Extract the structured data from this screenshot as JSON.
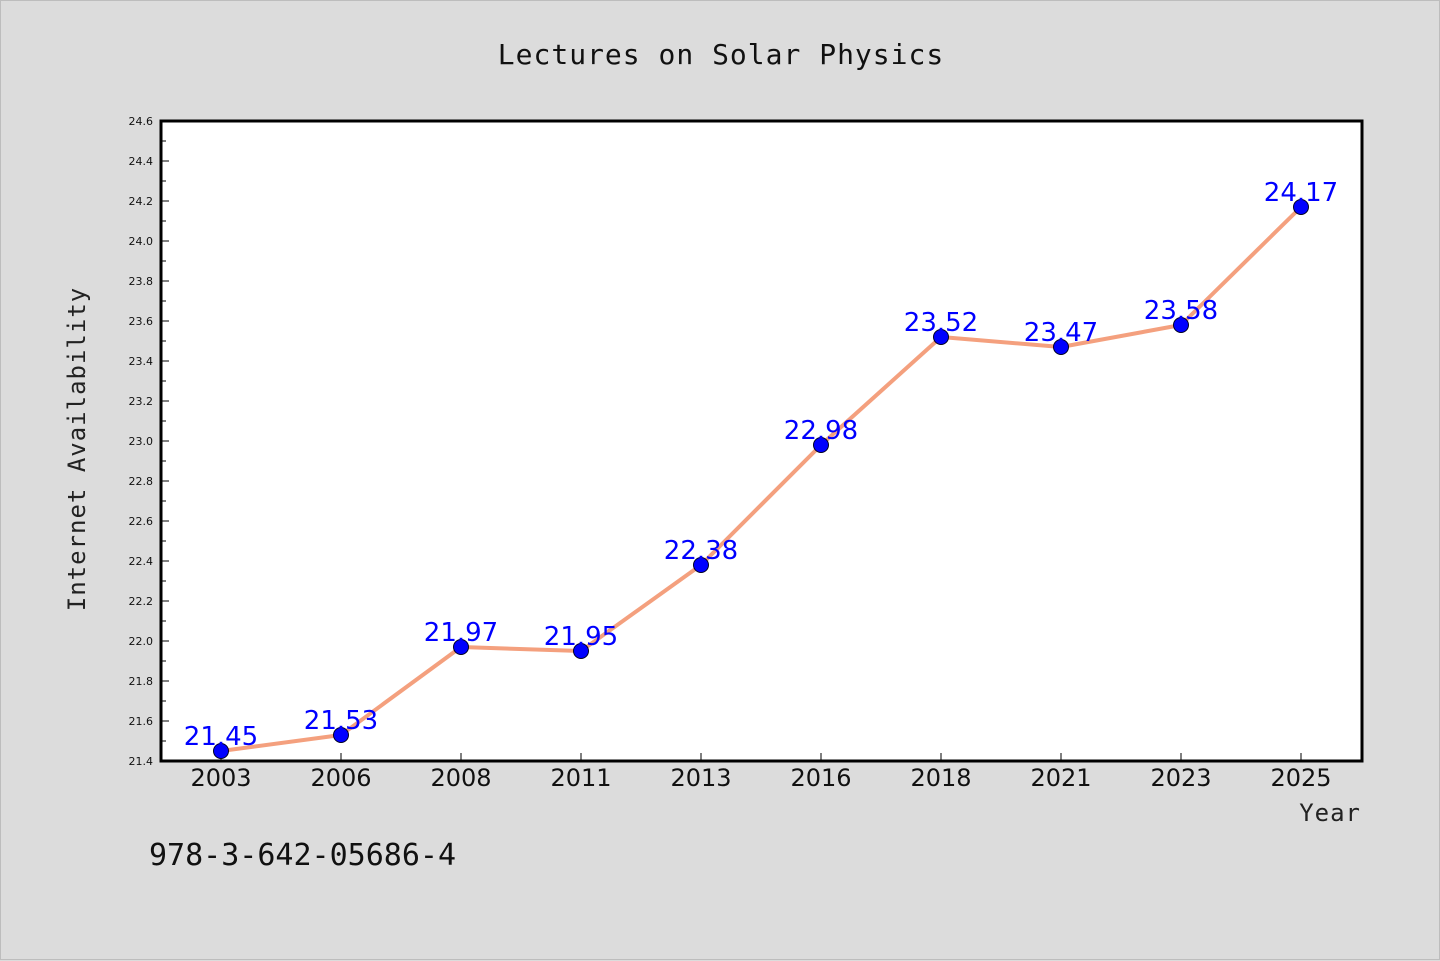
{
  "chart_data": {
    "type": "line",
    "title": "Lectures on Solar Physics",
    "xlabel": "Year",
    "ylabel": "Internet Availability",
    "categories": [
      "2003",
      "2006",
      "2008",
      "2011",
      "2013",
      "2016",
      "2018",
      "2021",
      "2023",
      "2025"
    ],
    "series": [
      {
        "values": [
          21.45,
          21.53,
          21.97,
          21.95,
          22.38,
          22.98,
          23.52,
          23.47,
          23.58,
          24.17
        ],
        "data_labels": [
          "21.45",
          "21.53",
          "21.97",
          "21.95",
          "22.38",
          "22.98",
          "23.52",
          "23.47",
          "23.58",
          "24.17"
        ],
        "line_color": "#f4a07e",
        "marker_color": "#0000ff"
      }
    ],
    "ylim": [
      21.4,
      24.6
    ],
    "yticks": [
      "21.4",
      "21.6",
      "21.8",
      "22.0",
      "22.2",
      "22.4",
      "22.6",
      "22.8",
      "23.0",
      "23.2",
      "23.4",
      "23.6",
      "23.8",
      "24.0",
      "24.2",
      "24.4",
      "24.6"
    ],
    "grid": false,
    "legend": "none"
  },
  "footer": "978-3-642-05686-4",
  "colors": {
    "background": "#dcdcdc",
    "plot_background": "#ffffff",
    "axis": "#000000"
  }
}
